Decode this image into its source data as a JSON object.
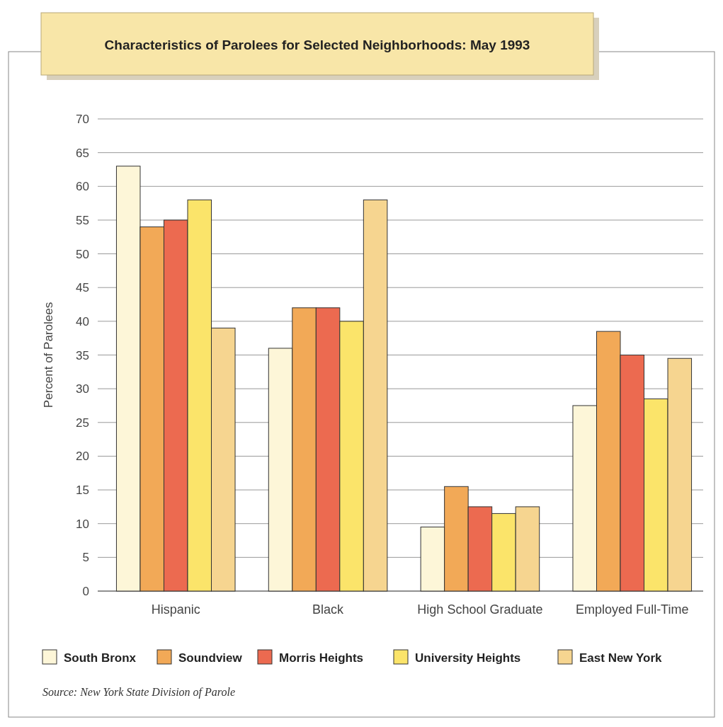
{
  "chart_data": {
    "type": "bar",
    "title": "Characteristics of Parolees for Selected Neighborhoods: May 1993",
    "ylabel": "Percent of Parolees",
    "categories": [
      "Hispanic",
      "Black",
      "High School Graduate",
      "Employed Full-Time"
    ],
    "series": [
      {
        "name": "South Bronx",
        "color": "#fdf6d8",
        "values": [
          63,
          36,
          9.5,
          27.5
        ]
      },
      {
        "name": "Soundview",
        "color": "#f2a957",
        "values": [
          54,
          42,
          15.5,
          38.5
        ]
      },
      {
        "name": "Morris Heights",
        "color": "#ec6a50",
        "values": [
          55,
          42,
          12.5,
          35
        ]
      },
      {
        "name": "University Heights",
        "color": "#fbe46a",
        "values": [
          58,
          40,
          11.5,
          28.5
        ]
      },
      {
        "name": "East New York",
        "color": "#f6d590",
        "values": [
          39,
          58,
          12.5,
          34.5
        ]
      }
    ],
    "ylim": [
      0,
      70
    ],
    "yticks": [
      0,
      5,
      10,
      15,
      20,
      25,
      30,
      35,
      40,
      45,
      50,
      55,
      60,
      65,
      70
    ],
    "grid": "y",
    "legend": "bottom",
    "annotations": [
      "Source: New York State Division of Parole"
    ]
  }
}
